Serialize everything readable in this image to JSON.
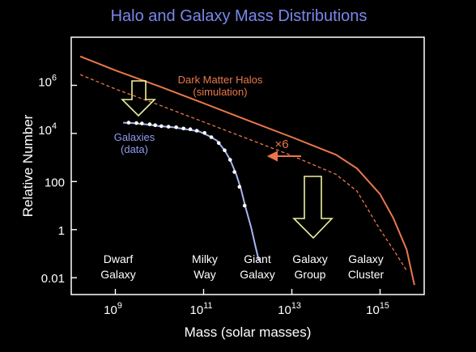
{
  "chart_data": {
    "type": "line",
    "title": "Halo and Galaxy Mass Distributions",
    "xlabel": "Mass (solar masses)",
    "ylabel": "Relative Number",
    "x_scale": "log",
    "y_scale": "log",
    "xlim": [
      100000000.0,
      1e+16
    ],
    "ylim": [
      0.002,
      100000000.0
    ],
    "x_ticks": [
      {
        "value": 1000000000.0,
        "label_base": "10",
        "label_exp": "9"
      },
      {
        "value": 100000000000.0,
        "label_base": "10",
        "label_exp": "11"
      },
      {
        "value": 10000000000000.0,
        "label_base": "10",
        "label_exp": "13"
      },
      {
        "value": 1000000000000000.0,
        "label_base": "10",
        "label_exp": "15"
      }
    ],
    "y_ticks": [
      {
        "value": 1000000.0,
        "label_base": "10",
        "label_exp": "6"
      },
      {
        "value": 10000.0,
        "label_base": "10",
        "label_exp": "4"
      },
      {
        "value": 100,
        "label": "100"
      },
      {
        "value": 1,
        "label": "1"
      },
      {
        "value": 0.01,
        "label": "0.01"
      }
    ],
    "series": [
      {
        "label_line1": "Dark Matter Halos",
        "label_line2": "(simulation)",
        "style": "solid",
        "color": "#e8784a",
        "points": [
          [
            160000000.0,
            16000000.0
          ],
          [
            1000000000.0,
            4200000.0
          ],
          [
            10000000000.0,
            900000.0
          ],
          [
            100000000000.0,
            180000.0
          ],
          [
            1000000000000.0,
            35000.0
          ],
          [
            10000000000000.0,
            7000.0
          ],
          [
            100000000000000.0,
            1300.0
          ],
          [
            300000000000000.0,
            350
          ],
          [
            1000000000000000.0,
            30
          ],
          [
            2000000000000000.0,
            3
          ],
          [
            4000000000000000.0,
            0.15
          ],
          [
            6000000000000000.0,
            0.005
          ]
        ]
      },
      {
        "style": "dashed",
        "color": "#e8784a",
        "points": [
          [
            160000000.0,
            2800000.0
          ],
          [
            1000000000.0,
            700000.0
          ],
          [
            10000000000.0,
            150000.0
          ],
          [
            100000000000.0,
            30000.0
          ],
          [
            1000000000000.0,
            6000.0
          ],
          [
            10000000000000.0,
            1200.0
          ],
          [
            100000000000000.0,
            200
          ],
          [
            300000000000000.0,
            40
          ],
          [
            1000000000000000.0,
            1
          ],
          [
            2000000000000000.0,
            0.15
          ],
          [
            4000000000000000.0,
            0.02
          ]
        ]
      },
      {
        "label_line1": "Galaxies",
        "label_line2": "(data)",
        "style": "solid",
        "color": "#a8b4f0",
        "points": [
          [
            1500000000.0,
            28000.0
          ],
          [
            2500000000.0,
            27000.0
          ],
          [
            4000000000.0,
            25000.0
          ],
          [
            7000000000.0,
            22000.0
          ],
          [
            10000000000.0,
            20000.0
          ],
          [
            20000000000.0,
            18000.0
          ],
          [
            40000000000.0,
            15000.0
          ],
          [
            80000000000.0,
            12000.0
          ],
          [
            130000000000.0,
            8000.0
          ],
          [
            200000000000.0,
            5000.0
          ],
          [
            300000000000.0,
            2000.0
          ],
          [
            400000000000.0,
            800
          ],
          [
            550000000000.0,
            200
          ],
          [
            700000000000.0,
            50
          ],
          [
            900000000000.0,
            8
          ],
          [
            1200000000000.0,
            1.2
          ],
          [
            1500000000000.0,
            0.2
          ],
          [
            1800000000000.0,
            0.05
          ]
        ]
      }
    ],
    "galaxy_data_points": [
      [
        2000000000.0,
        28000.0
      ],
      [
        3000000000.0,
        27000.0
      ],
      [
        4000000000.0,
        26000.0
      ],
      [
        6000000000.0,
        24000.0
      ],
      [
        8000000000.0,
        22000.0
      ],
      [
        11000000000.0,
        20000.0
      ],
      [
        16000000000.0,
        19000.0
      ],
      [
        24000000000.0,
        18000.0
      ],
      [
        35000000000.0,
        16000.0
      ],
      [
        50000000000.0,
        15000.0
      ],
      [
        70000000000.0,
        13000.0
      ],
      [
        105000000000.0,
        10500.0
      ],
      [
        150000000000.0,
        7000.0
      ],
      [
        220000000000.0,
        4000.0
      ],
      [
        300000000000.0,
        2000.0
      ],
      [
        400000000000.0,
        800
      ],
      [
        500000000000.0,
        250
      ],
      [
        650000000000.0,
        60
      ],
      [
        850000000000.0,
        10
      ]
    ],
    "annotations": [
      {
        "text": "×6"
      }
    ],
    "category_labels": [
      {
        "line1": "Dwarf",
        "line2": "Galaxy"
      },
      {
        "line1": "Milky",
        "line2": "Way"
      },
      {
        "line1": "Giant",
        "line2": "Galaxy"
      },
      {
        "line1": "Galaxy",
        "line2": "Group"
      },
      {
        "line1": "Galaxy",
        "line2": "Cluster"
      }
    ]
  }
}
